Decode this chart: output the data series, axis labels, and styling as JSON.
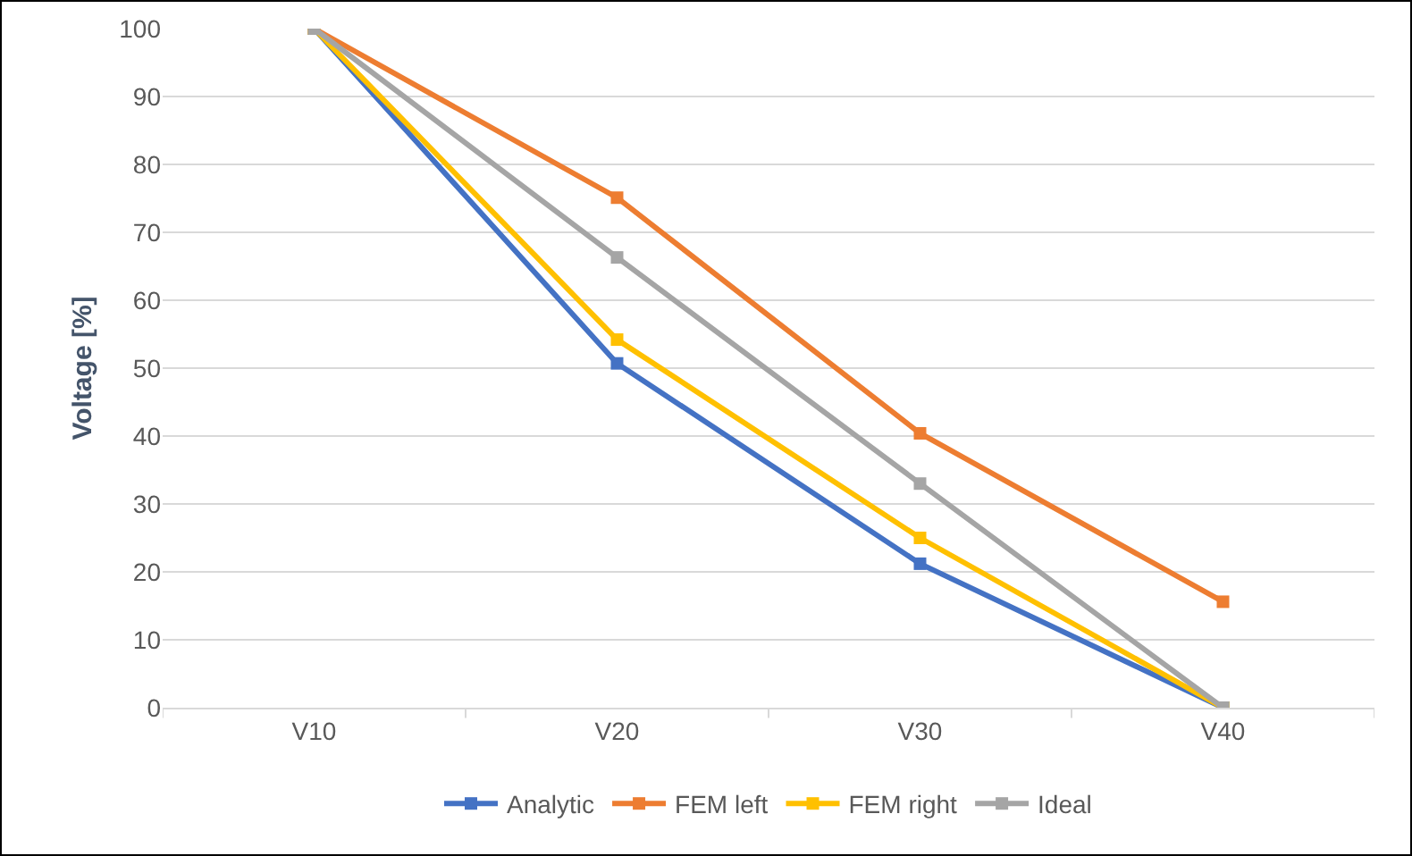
{
  "chart_data": {
    "type": "line",
    "ylabel": "Voltage [%]",
    "categories": [
      "V10",
      "V20",
      "V30",
      "V40"
    ],
    "series": [
      {
        "name": "Analytic",
        "color": "#4472c4",
        "values": [
          100,
          50.7,
          21.2,
          0
        ]
      },
      {
        "name": "FEM left",
        "color": "#ed7d31",
        "values": [
          100,
          75.1,
          40.4,
          15.6
        ]
      },
      {
        "name": "FEM right",
        "color": "#ffc000",
        "values": [
          100,
          54.2,
          25,
          0
        ]
      },
      {
        "name": "Ideal",
        "color": "#a5a5a5",
        "values": [
          100,
          66.3,
          33,
          0
        ]
      }
    ],
    "ylim": [
      0,
      100
    ],
    "yticks": [
      0,
      10,
      20,
      30,
      40,
      50,
      60,
      70,
      80,
      90,
      100
    ],
    "grid": "y",
    "legend": "bottom",
    "marker": "square",
    "line_style": "solid"
  }
}
